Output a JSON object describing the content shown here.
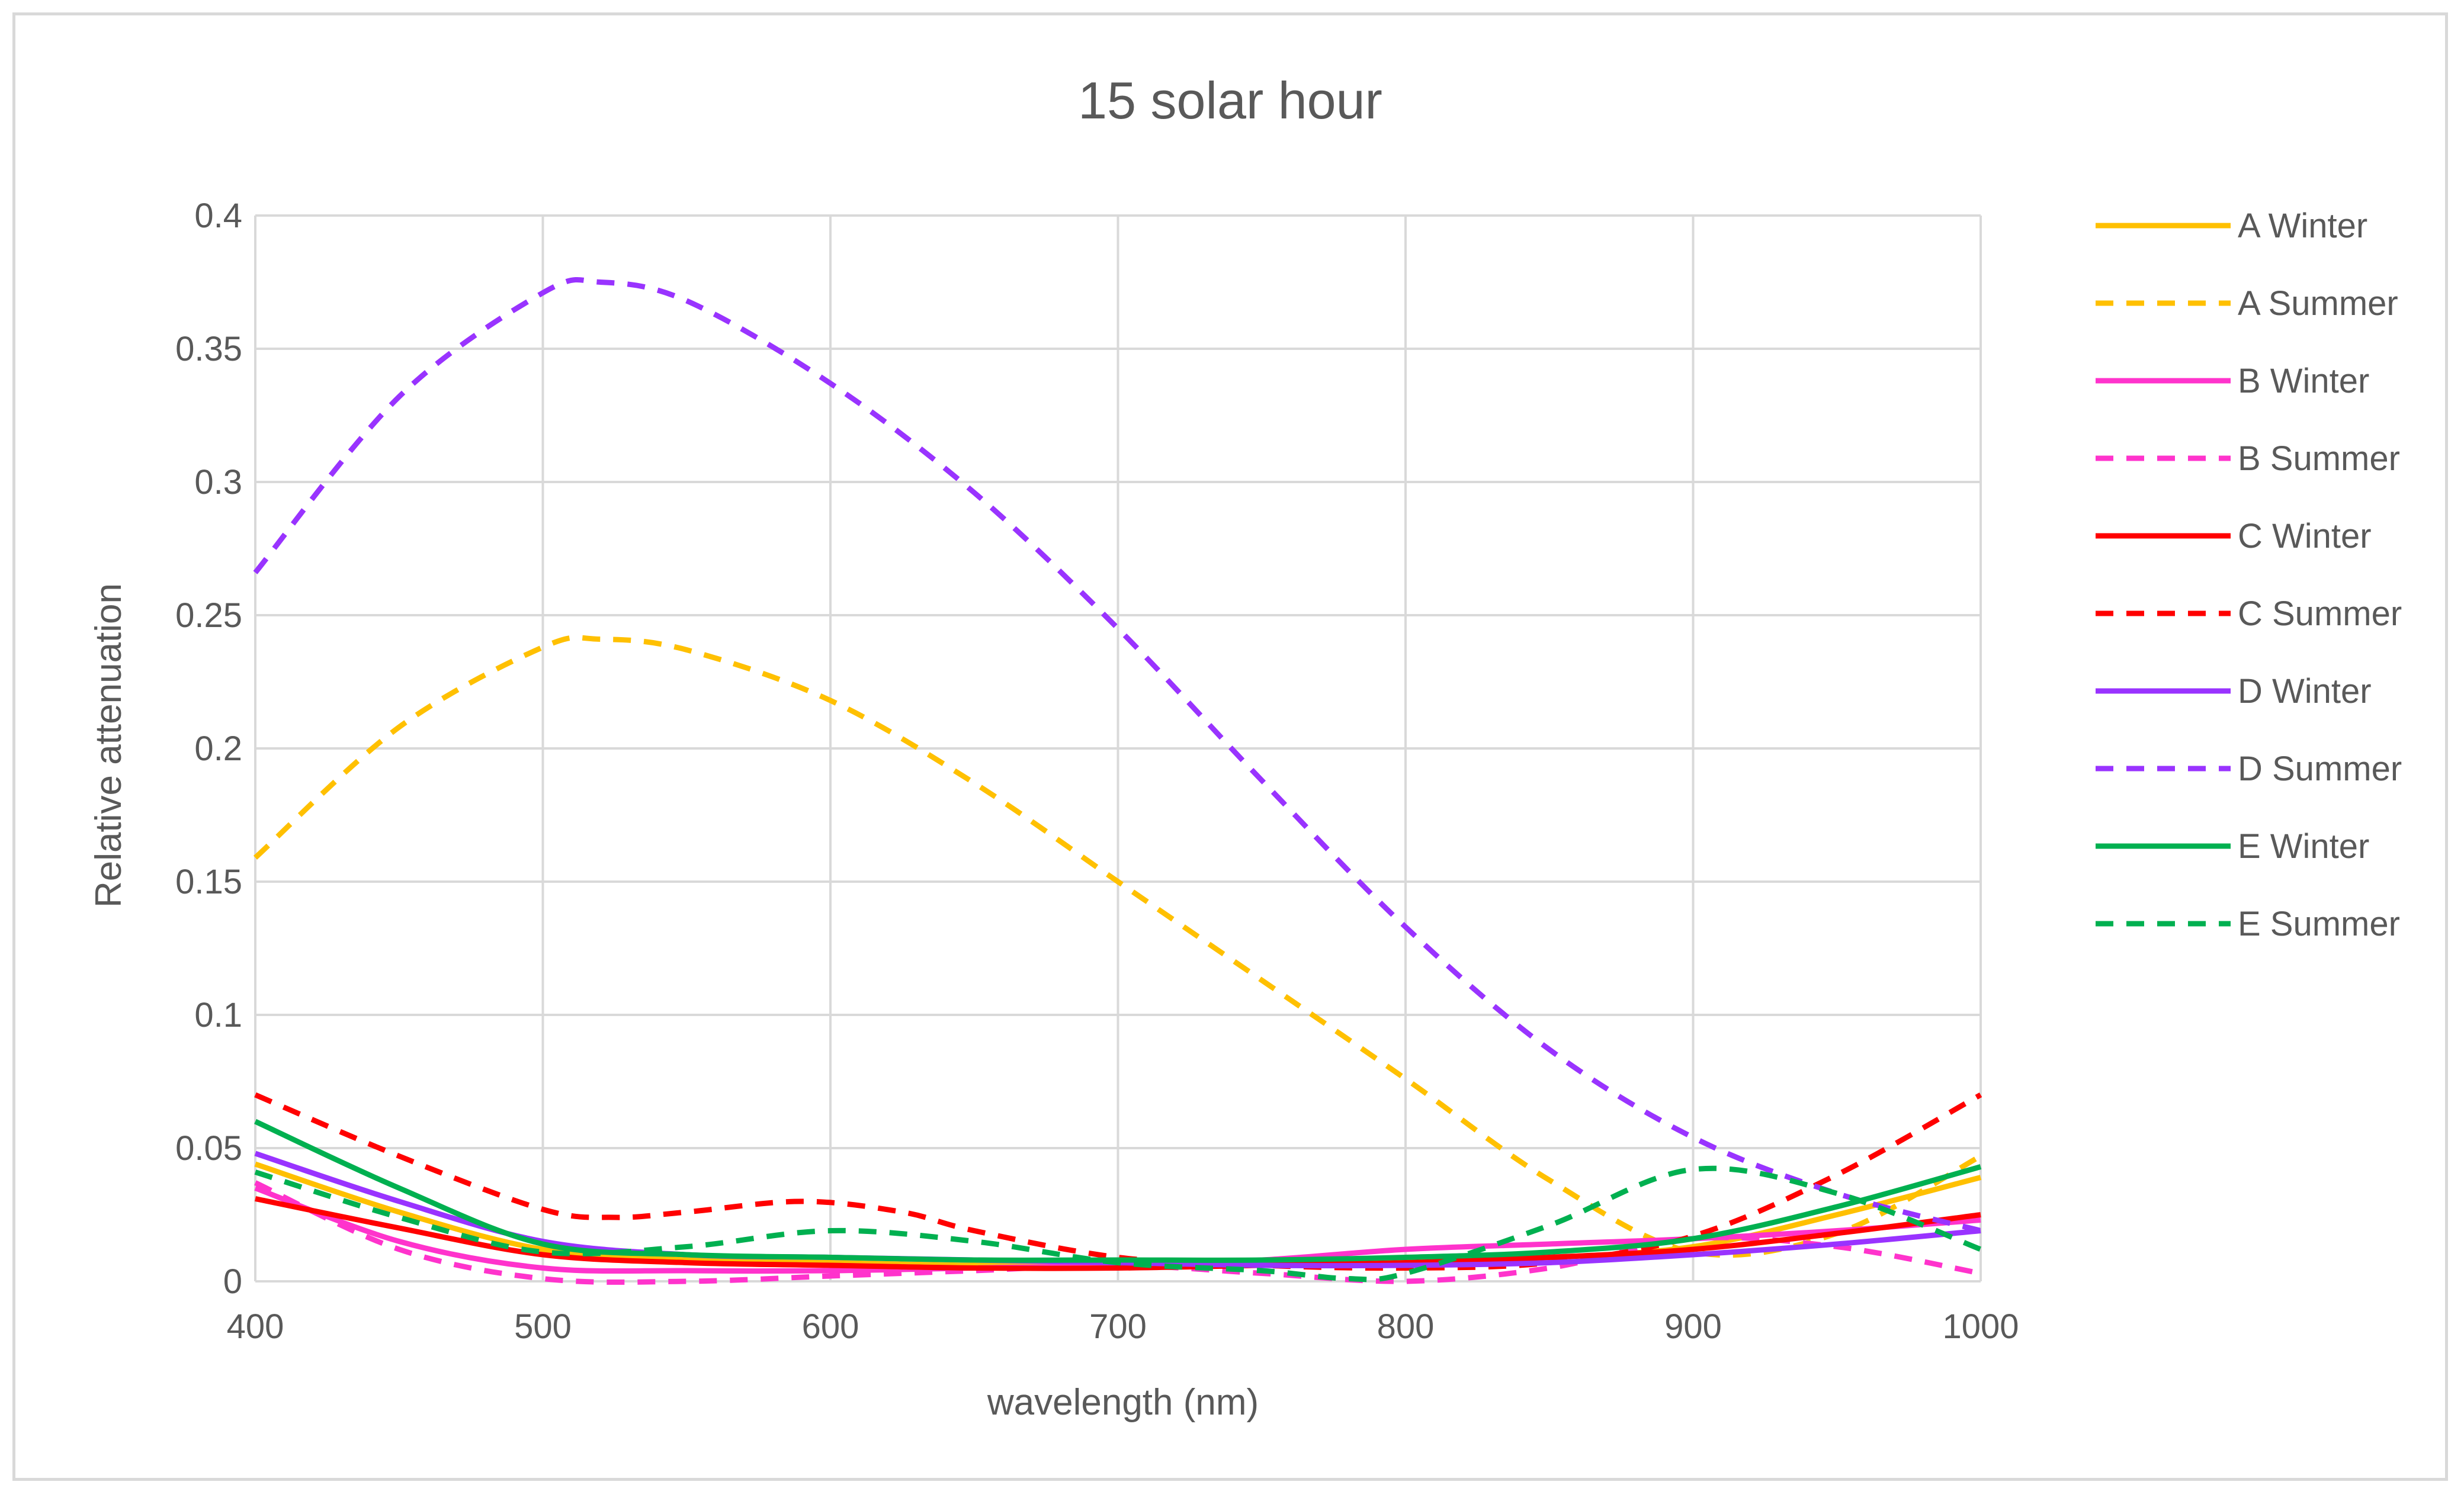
{
  "chart_data": {
    "type": "line",
    "title": "15 solar hour",
    "xlabel": "wavelength (nm)",
    "ylabel": "Relative attenuation",
    "xlim": [
      400,
      1000
    ],
    "ylim": [
      0,
      0.4
    ],
    "x_ticks": [
      400,
      500,
      600,
      700,
      800,
      900,
      1000
    ],
    "y_ticks": [
      0,
      0.05,
      0.1,
      0.15,
      0.2,
      0.25,
      0.3,
      0.35,
      0.4
    ],
    "x_tick_labels": [
      "400",
      "500",
      "600",
      "700",
      "800",
      "900",
      "1000"
    ],
    "y_tick_labels": [
      "0",
      "0.05",
      "0.1",
      "0.15",
      "0.2",
      "0.25",
      "0.3",
      "0.35",
      "0.4"
    ],
    "grid": true,
    "legend_position": "right",
    "series": [
      {
        "name": "A Winter",
        "color": "#FFC000",
        "dash": "solid",
        "x": [
          400,
          450,
          500,
          550,
          600,
          650,
          700,
          750,
          800,
          850,
          900,
          950,
          1000
        ],
        "y": [
          0.044,
          0.026,
          0.012,
          0.008,
          0.007,
          0.006,
          0.006,
          0.007,
          0.008,
          0.009,
          0.013,
          0.025,
          0.039
        ]
      },
      {
        "name": "A Summer",
        "color": "#FFC000",
        "dash": "dash",
        "x": [
          400,
          450,
          500,
          520,
          550,
          600,
          650,
          700,
          750,
          800,
          850,
          900,
          950,
          1000
        ],
        "y": [
          0.159,
          0.208,
          0.238,
          0.241,
          0.237,
          0.218,
          0.187,
          0.15,
          0.113,
          0.076,
          0.038,
          0.011,
          0.018,
          0.047
        ]
      },
      {
        "name": "B Winter",
        "color": "#FF33CC",
        "dash": "solid",
        "x": [
          400,
          450,
          500,
          550,
          600,
          650,
          700,
          750,
          800,
          850,
          900,
          950,
          1000
        ],
        "y": [
          0.035,
          0.015,
          0.005,
          0.004,
          0.004,
          0.005,
          0.006,
          0.008,
          0.012,
          0.014,
          0.016,
          0.019,
          0.023
        ]
      },
      {
        "name": "B Summer",
        "color": "#FF33CC",
        "dash": "dash",
        "x": [
          400,
          450,
          500,
          550,
          600,
          650,
          700,
          750,
          800,
          850,
          900,
          950,
          1000
        ],
        "y": [
          0.037,
          0.012,
          0.001,
          0.0,
          0.002,
          0.004,
          0.006,
          0.003,
          0.0,
          0.005,
          0.016,
          0.013,
          0.003
        ]
      },
      {
        "name": "C Winter",
        "color": "#FF0000",
        "dash": "solid",
        "x": [
          400,
          450,
          500,
          550,
          600,
          650,
          700,
          750,
          800,
          850,
          900,
          950,
          1000
        ],
        "y": [
          0.031,
          0.02,
          0.01,
          0.007,
          0.006,
          0.005,
          0.005,
          0.006,
          0.007,
          0.009,
          0.012,
          0.018,
          0.025
        ]
      },
      {
        "name": "C Summer",
        "color": "#FF0000",
        "dash": "dash",
        "x": [
          400,
          450,
          500,
          525,
          550,
          590,
          625,
          650,
          700,
          750,
          800,
          850,
          900,
          950,
          1000
        ],
        "y": [
          0.07,
          0.047,
          0.027,
          0.024,
          0.026,
          0.03,
          0.026,
          0.019,
          0.009,
          0.006,
          0.005,
          0.007,
          0.017,
          0.04,
          0.07
        ]
      },
      {
        "name": "D Winter",
        "color": "#9933FF",
        "dash": "solid",
        "x": [
          400,
          450,
          500,
          550,
          600,
          650,
          700,
          750,
          800,
          850,
          900,
          950,
          1000
        ],
        "y": [
          0.048,
          0.03,
          0.015,
          0.01,
          0.009,
          0.008,
          0.007,
          0.006,
          0.006,
          0.007,
          0.01,
          0.014,
          0.019
        ]
      },
      {
        "name": "D Summer",
        "color": "#9933FF",
        "dash": "dash",
        "x": [
          400,
          450,
          500,
          520,
          550,
          600,
          650,
          700,
          750,
          800,
          850,
          900,
          950,
          1000
        ],
        "y": [
          0.266,
          0.332,
          0.371,
          0.375,
          0.368,
          0.337,
          0.296,
          0.245,
          0.188,
          0.133,
          0.087,
          0.054,
          0.033,
          0.019
        ]
      },
      {
        "name": "E Winter",
        "color": "#00B050",
        "dash": "solid",
        "x": [
          400,
          450,
          500,
          550,
          600,
          650,
          700,
          750,
          800,
          850,
          900,
          950,
          1000
        ],
        "y": [
          0.06,
          0.035,
          0.014,
          0.01,
          0.009,
          0.008,
          0.008,
          0.008,
          0.009,
          0.011,
          0.016,
          0.028,
          0.043
        ]
      },
      {
        "name": "E Summer",
        "color": "#00B050",
        "dash": "dash",
        "x": [
          400,
          450,
          500,
          550,
          600,
          650,
          700,
          750,
          780,
          800,
          850,
          900,
          950,
          1000
        ],
        "y": [
          0.041,
          0.024,
          0.011,
          0.013,
          0.019,
          0.015,
          0.007,
          0.004,
          0.001,
          0.003,
          0.021,
          0.042,
          0.033,
          0.012
        ]
      }
    ]
  }
}
